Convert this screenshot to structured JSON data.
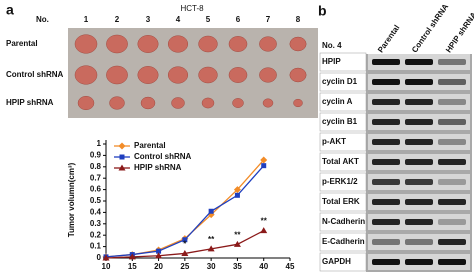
{
  "panel_a": {
    "label": "a",
    "cell_line": "HCT-8",
    "number_header": "No.",
    "numbers": [
      "1",
      "2",
      "3",
      "4",
      "5",
      "6",
      "7",
      "8"
    ],
    "rows": [
      "Parental",
      "Control shRNA",
      "HPIP shRNA"
    ]
  },
  "chart_data": {
    "type": "line",
    "y_label": "Tumor volumn(cm³)",
    "x": [
      10,
      15,
      20,
      25,
      30,
      35,
      40
    ],
    "series": [
      {
        "name": "Parental",
        "color": "#f28c28",
        "marker": "diamond",
        "values": [
          0.01,
          0.03,
          0.07,
          0.17,
          0.38,
          0.6,
          0.86
        ]
      },
      {
        "name": "Control shRNA",
        "color": "#1f3fbf",
        "marker": "square",
        "values": [
          0.01,
          0.03,
          0.06,
          0.16,
          0.41,
          0.55,
          0.81
        ]
      },
      {
        "name": "HPIP shRNA",
        "color": "#8b1a1a",
        "marker": "triangle",
        "values": [
          0,
          0.01,
          0.02,
          0.04,
          0.08,
          0.12,
          0.24
        ]
      }
    ],
    "annotations": [
      {
        "text": "*",
        "x": 25
      },
      {
        "text": "**",
        "x": 30
      },
      {
        "text": "**",
        "x": 35
      },
      {
        "text": "**",
        "x": 40
      }
    ],
    "xlim": [
      10,
      45
    ],
    "xticks": [
      10,
      15,
      20,
      25,
      30,
      35,
      40,
      45
    ],
    "ylim": [
      0,
      1
    ],
    "yticks": [
      0,
      0.1,
      0.2,
      0.3,
      0.4,
      0.5,
      0.6,
      0.7,
      0.8,
      0.9,
      1
    ],
    "legend": "upper-left"
  },
  "panel_b": {
    "label": "b",
    "sample": "No. 4",
    "columns": [
      "Parental",
      "Control shRNA",
      "HPIP shRNA"
    ],
    "rows": [
      "HPIP",
      "cyclin D1",
      "cyclin A",
      "cyclin B1",
      "p-AKT",
      "Total AKT",
      "p-ERK1/2",
      "Total ERK",
      "N-Cadherin",
      "E-Cadherin",
      "GAPDH"
    ]
  }
}
